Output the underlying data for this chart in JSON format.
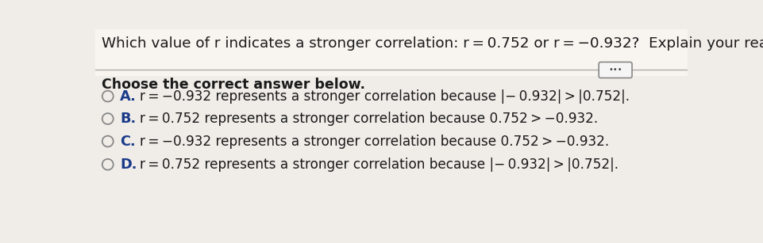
{
  "title": "Which value of r indicates a stronger correlation: r = 0.752 or r = −0.932?  Explain your reasoning.",
  "prompt": "Choose the correct answer below.",
  "options": [
    {
      "letter": "A.",
      "text": "r = −0.932 represents a stronger correlation because |− 0.932| > |0.752|."
    },
    {
      "letter": "B.",
      "text": "r = 0.752 represents a stronger correlation because 0.752 > −0.932."
    },
    {
      "letter": "C.",
      "text": "r = −0.932 represents a stronger correlation because 0.752 > −0.932."
    },
    {
      "letter": "D.",
      "text": "r = 0.752 represents a stronger correlation because |− 0.932| > |0.752|."
    }
  ],
  "bg_color": "#f0ede8",
  "text_color": "#1a1a1a",
  "letter_color": "#1a3a8a",
  "circle_edge_color": "#888888",
  "line_color": "#aaaaaa",
  "btn_face_color": "#f5f5f5",
  "btn_edge_color": "#888888",
  "title_fontsize": 13.2,
  "prompt_fontsize": 12.5,
  "option_fontsize": 12.2,
  "letter_fontsize": 12.8
}
